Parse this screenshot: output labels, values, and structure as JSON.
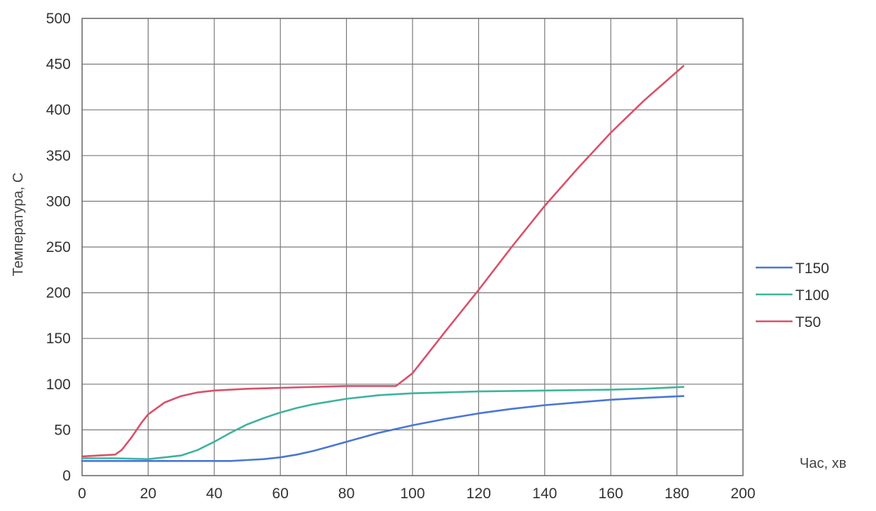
{
  "chart_data": {
    "type": "line",
    "xlabel": "Час, хв",
    "ylabel": "Температура, С",
    "xlim": [
      0,
      200
    ],
    "ylim": [
      0,
      500
    ],
    "xticks": [
      "0",
      "20",
      "40",
      "60",
      "80",
      "100",
      "120",
      "140",
      "160",
      "180",
      "200"
    ],
    "yticks": [
      "0",
      "50",
      "100",
      "150",
      "200",
      "250",
      "300",
      "350",
      "400",
      "450",
      "500"
    ],
    "grid": true,
    "legend_position": "right",
    "series": [
      {
        "name": "T150",
        "color": "#4a76d6",
        "x": [
          0,
          10,
          20,
          30,
          40,
          45,
          50,
          55,
          60,
          65,
          70,
          75,
          80,
          85,
          90,
          95,
          100,
          110,
          120,
          130,
          140,
          150,
          160,
          170,
          182
        ],
        "y": [
          16,
          16,
          16,
          16,
          16,
          16,
          17,
          18,
          20,
          23,
          27,
          32,
          37,
          42,
          47,
          51,
          55,
          62,
          68,
          73,
          77,
          80,
          83,
          85,
          87
        ]
      },
      {
        "name": "T100",
        "color": "#3fb39e",
        "x": [
          0,
          10,
          20,
          25,
          30,
          35,
          40,
          45,
          50,
          55,
          60,
          65,
          70,
          75,
          80,
          90,
          100,
          110,
          120,
          140,
          160,
          170,
          182
        ],
        "y": [
          19,
          19,
          18,
          20,
          22,
          28,
          37,
          47,
          56,
          63,
          69,
          74,
          78,
          81,
          84,
          88,
          90,
          91,
          92,
          93,
          94,
          95,
          97
        ]
      },
      {
        "name": "T50",
        "color": "#d9506a",
        "x": [
          0,
          5,
          10,
          12,
          15,
          18,
          20,
          25,
          30,
          35,
          40,
          50,
          60,
          70,
          80,
          95,
          100,
          110,
          120,
          130,
          140,
          150,
          160,
          170,
          182
        ],
        "y": [
          21,
          22,
          23,
          28,
          42,
          58,
          67,
          80,
          87,
          91,
          93,
          95,
          96,
          97,
          98,
          98,
          112,
          158,
          203,
          250,
          295,
          336,
          375,
          410,
          448
        ]
      }
    ]
  }
}
